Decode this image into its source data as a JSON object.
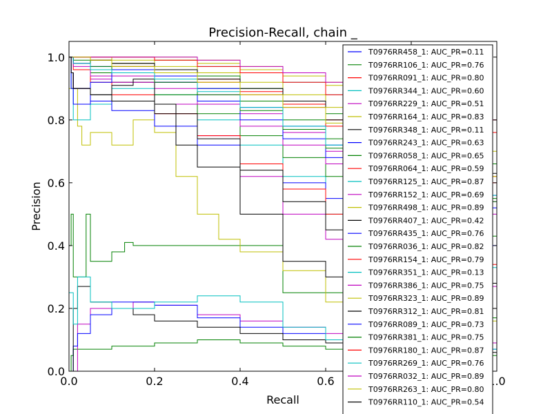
{
  "chart_data": {
    "type": "line",
    "title": "Precision-Recall, chain _",
    "xlabel": "Recall",
    "ylabel": "Precision",
    "xlim": [
      0.0,
      1.0
    ],
    "ylim": [
      0.0,
      1.05
    ],
    "xticks": [
      0.0,
      0.2,
      0.4,
      0.6,
      0.8,
      1.0
    ],
    "xtick_labels": [
      "0.0",
      "0.2",
      "0.4",
      "0.6",
      "0.8",
      "1.0"
    ],
    "yticks": [
      0.0,
      0.2,
      0.4,
      0.6,
      0.8,
      1.0
    ],
    "ytick_labels": [
      "0.0",
      "0.2",
      "0.4",
      "0.6",
      "0.8",
      "1.0"
    ],
    "legend_position": "top-right",
    "colors": [
      "#0000ff",
      "#008000",
      "#ff0000",
      "#00bfbf",
      "#bf00bf",
      "#bfbf00",
      "#000000"
    ],
    "series": [
      {
        "name": "T0976RR458_1: AUC_PR=0.11",
        "x": [
          0.0,
          0.01,
          0.02,
          0.05,
          0.1,
          0.2,
          0.3,
          0.4,
          0.5,
          0.6,
          0.7,
          0.8,
          0.9,
          1.0
        ],
        "y": [
          0.0,
          0.08,
          0.12,
          0.18,
          0.22,
          0.21,
          0.17,
          0.14,
          0.12,
          0.1,
          0.09,
          0.08,
          0.07,
          0.06
        ]
      },
      {
        "name": "T0976RR106_1: AUC_PR=0.76",
        "x": [
          0.0,
          0.005,
          0.01,
          0.05,
          0.1,
          0.2,
          0.3,
          0.4,
          0.5,
          0.6,
          0.7,
          0.8,
          0.9,
          1.0
        ],
        "y": [
          1.0,
          1.0,
          1.0,
          0.99,
          0.97,
          0.95,
          0.9,
          0.86,
          0.8,
          0.74,
          0.68,
          0.6,
          0.55,
          0.5
        ]
      },
      {
        "name": "T0976RR091_1: AUC_PR=0.80",
        "x": [
          0.0,
          0.005,
          0.01,
          0.05,
          0.1,
          0.2,
          0.3,
          0.4,
          0.5,
          0.6,
          0.7,
          0.8,
          0.9,
          1.0
        ],
        "y": [
          1.0,
          1.0,
          1.0,
          1.0,
          0.98,
          0.96,
          0.93,
          0.89,
          0.85,
          0.8,
          0.75,
          0.68,
          0.62,
          0.58
        ]
      },
      {
        "name": "T0976RR344_1: AUC_PR=0.60",
        "x": [
          0.0,
          0.005,
          0.01,
          0.05,
          0.1,
          0.2,
          0.3,
          0.4,
          0.5,
          0.6,
          0.7,
          0.8,
          0.9,
          1.0
        ],
        "y": [
          1.0,
          0.9,
          0.8,
          0.85,
          0.9,
          0.88,
          0.8,
          0.72,
          0.62,
          0.5,
          0.45,
          0.38,
          0.33,
          0.3
        ]
      },
      {
        "name": "T0976RR229_1: AUC_PR=0.51",
        "x": [
          0.0,
          0.005,
          0.01,
          0.05,
          0.1,
          0.2,
          0.3,
          0.4,
          0.5,
          0.6,
          0.7,
          0.8,
          0.9,
          1.0
        ],
        "y": [
          1.0,
          0.95,
          0.9,
          0.93,
          0.92,
          0.85,
          0.75,
          0.62,
          0.5,
          0.42,
          0.36,
          0.3,
          0.27,
          0.25
        ]
      },
      {
        "name": "T0976RR164_1: AUC_PR=0.83",
        "x": [
          0.0,
          0.005,
          0.01,
          0.05,
          0.1,
          0.2,
          0.3,
          0.4,
          0.5,
          0.6,
          0.7,
          0.8,
          0.9,
          1.0
        ],
        "y": [
          1.0,
          1.0,
          1.0,
          1.0,
          0.99,
          0.97,
          0.95,
          0.92,
          0.88,
          0.84,
          0.8,
          0.74,
          0.7,
          0.65
        ]
      },
      {
        "name": "T0976RR348_1: AUC_PR=0.11",
        "x": [
          0.0,
          0.01,
          0.02,
          0.05,
          0.1,
          0.15,
          0.2,
          0.3,
          0.4,
          0.5,
          0.6,
          0.7,
          0.8,
          0.9,
          1.0
        ],
        "y": [
          0.0,
          0.2,
          0.27,
          0.22,
          0.2,
          0.18,
          0.16,
          0.14,
          0.12,
          0.1,
          0.09,
          0.08,
          0.07,
          0.06,
          0.06
        ]
      },
      {
        "name": "T0976RR243_1: AUC_PR=0.63",
        "x": [
          0.0,
          0.005,
          0.01,
          0.05,
          0.1,
          0.2,
          0.3,
          0.4,
          0.5,
          0.6,
          0.7,
          0.8,
          0.9,
          1.0
        ],
        "y": [
          1.0,
          0.95,
          0.9,
          0.86,
          0.83,
          0.78,
          0.72,
          0.66,
          0.6,
          0.55,
          0.5,
          0.44,
          0.4,
          0.36
        ]
      },
      {
        "name": "T0976RR058_1: AUC_PR=0.65",
        "x": [
          0.0,
          0.005,
          0.01,
          0.05,
          0.1,
          0.2,
          0.3,
          0.4,
          0.5,
          0.6,
          0.7,
          0.8,
          0.9,
          1.0
        ],
        "y": [
          1.0,
          1.0,
          0.98,
          0.95,
          0.92,
          0.88,
          0.82,
          0.75,
          0.68,
          0.62,
          0.55,
          0.48,
          0.43,
          0.4
        ]
      },
      {
        "name": "T0976RR064_1: AUC_PR=0.59",
        "x": [
          0.0,
          0.005,
          0.01,
          0.05,
          0.1,
          0.2,
          0.3,
          0.4,
          0.5,
          0.6,
          0.7,
          0.8,
          0.9,
          1.0
        ],
        "y": [
          1.0,
          1.0,
          0.96,
          0.92,
          0.88,
          0.82,
          0.75,
          0.66,
          0.58,
          0.5,
          0.44,
          0.38,
          0.34,
          0.3
        ]
      },
      {
        "name": "T0976RR125_1: AUC_PR=0.87",
        "x": [
          0.0,
          0.005,
          0.01,
          0.05,
          0.1,
          0.2,
          0.3,
          0.4,
          0.5,
          0.6,
          0.7,
          0.8,
          0.9,
          1.0
        ],
        "y": [
          1.0,
          1.0,
          1.0,
          1.0,
          1.0,
          0.99,
          0.97,
          0.95,
          0.92,
          0.88,
          0.84,
          0.8,
          0.76,
          0.72
        ]
      },
      {
        "name": "T0976RR152_1: AUC_PR=0.69",
        "x": [
          0.0,
          0.005,
          0.01,
          0.05,
          0.1,
          0.2,
          0.3,
          0.4,
          0.5,
          0.6,
          0.7,
          0.8,
          0.9,
          1.0
        ],
        "y": [
          1.0,
          1.0,
          0.97,
          0.94,
          0.92,
          0.9,
          0.85,
          0.78,
          0.72,
          0.66,
          0.6,
          0.54,
          0.5,
          0.46
        ]
      },
      {
        "name": "T0976RR498_1: AUC_PR=0.89",
        "x": [
          0.0,
          0.005,
          0.01,
          0.05,
          0.1,
          0.2,
          0.3,
          0.4,
          0.5,
          0.6,
          0.7,
          0.8,
          0.9,
          1.0
        ],
        "y": [
          1.0,
          1.0,
          1.0,
          1.0,
          1.0,
          1.0,
          0.99,
          0.97,
          0.95,
          0.92,
          0.88,
          0.84,
          0.8,
          0.76
        ]
      },
      {
        "name": "T0976RR407_1: AUC_PR=0.42",
        "x": [
          0.0,
          0.005,
          0.01,
          0.05,
          0.1,
          0.15,
          0.2,
          0.25,
          0.3,
          0.4,
          0.5,
          0.6,
          0.7,
          0.8,
          0.9,
          1.0
        ],
        "y": [
          1.0,
          0.95,
          0.9,
          0.88,
          0.91,
          0.93,
          0.85,
          0.72,
          0.65,
          0.5,
          0.35,
          0.3,
          0.26,
          0.22,
          0.2,
          0.18
        ]
      },
      {
        "name": "T0976RR435_1: AUC_PR=0.76",
        "x": [
          0.0,
          0.005,
          0.01,
          0.05,
          0.1,
          0.2,
          0.3,
          0.4,
          0.5,
          0.6,
          0.7,
          0.8,
          0.9,
          1.0
        ],
        "y": [
          1.0,
          1.0,
          0.98,
          0.97,
          0.96,
          0.94,
          0.9,
          0.84,
          0.78,
          0.72,
          0.66,
          0.6,
          0.56,
          0.52
        ]
      },
      {
        "name": "T0976RR036_1: AUC_PR=0.82",
        "x": [
          0.0,
          0.005,
          0.01,
          0.05,
          0.1,
          0.2,
          0.3,
          0.4,
          0.5,
          0.6,
          0.7,
          0.8,
          0.9,
          1.0
        ],
        "y": [
          1.0,
          1.0,
          1.0,
          0.99,
          0.98,
          0.96,
          0.94,
          0.9,
          0.86,
          0.82,
          0.76,
          0.7,
          0.66,
          0.62
        ]
      },
      {
        "name": "T0976RR154_1: AUC_PR=0.79",
        "x": [
          0.0,
          0.005,
          0.01,
          0.05,
          0.1,
          0.2,
          0.3,
          0.4,
          0.5,
          0.6,
          0.7,
          0.8,
          0.9,
          1.0
        ],
        "y": [
          1.0,
          1.0,
          1.0,
          0.99,
          0.97,
          0.95,
          0.92,
          0.88,
          0.84,
          0.78,
          0.72,
          0.66,
          0.6,
          0.56
        ]
      },
      {
        "name": "T0976RR351_1: AUC_PR=0.13",
        "x": [
          0.0,
          0.01,
          0.02,
          0.05,
          0.1,
          0.2,
          0.3,
          0.4,
          0.5,
          0.6,
          0.7,
          0.8,
          0.9,
          1.0
        ],
        "y": [
          0.25,
          0.15,
          0.3,
          0.22,
          0.2,
          0.22,
          0.24,
          0.22,
          0.14,
          0.1,
          0.09,
          0.08,
          0.07,
          0.06
        ]
      },
      {
        "name": "T0976RR386_1: AUC_PR=0.75",
        "x": [
          0.0,
          0.005,
          0.01,
          0.05,
          0.1,
          0.2,
          0.3,
          0.4,
          0.5,
          0.6,
          0.7,
          0.8,
          0.9,
          1.0
        ],
        "y": [
          1.0,
          1.0,
          0.98,
          0.96,
          0.94,
          0.92,
          0.88,
          0.82,
          0.76,
          0.7,
          0.64,
          0.58,
          0.54,
          0.5
        ]
      },
      {
        "name": "T0976RR323_1: AUC_PR=0.89",
        "x": [
          0.0,
          0.005,
          0.01,
          0.05,
          0.1,
          0.2,
          0.3,
          0.4,
          0.5,
          0.6,
          0.7,
          0.8,
          0.9,
          1.0
        ],
        "y": [
          1.0,
          1.0,
          1.0,
          1.0,
          1.0,
          0.99,
          0.98,
          0.96,
          0.94,
          0.91,
          0.88,
          0.84,
          0.8,
          0.76
        ]
      },
      {
        "name": "T0976RR312_1: AUC_PR=0.81",
        "x": [
          0.0,
          0.005,
          0.01,
          0.05,
          0.1,
          0.2,
          0.3,
          0.4,
          0.5,
          0.6,
          0.7,
          0.8,
          0.9,
          1.0
        ],
        "y": [
          1.0,
          1.0,
          1.0,
          0.99,
          0.98,
          0.96,
          0.93,
          0.9,
          0.86,
          0.8,
          0.74,
          0.68,
          0.63,
          0.6
        ]
      },
      {
        "name": "T0976RR089_1: AUC_PR=0.73",
        "x": [
          0.0,
          0.005,
          0.01,
          0.05,
          0.1,
          0.2,
          0.3,
          0.4,
          0.5,
          0.6,
          0.7,
          0.8,
          0.9,
          1.0
        ],
        "y": [
          1.0,
          0.9,
          0.85,
          0.92,
          0.95,
          0.92,
          0.86,
          0.8,
          0.74,
          0.68,
          0.62,
          0.56,
          0.52,
          0.48
        ]
      },
      {
        "name": "T0976RR381_1: AUC_PR=0.75",
        "x": [
          0.0,
          0.005,
          0.01,
          0.05,
          0.1,
          0.2,
          0.3,
          0.4,
          0.5,
          0.6,
          0.7,
          0.8,
          0.9,
          1.0
        ],
        "y": [
          1.0,
          1.0,
          0.99,
          0.97,
          0.95,
          0.92,
          0.88,
          0.83,
          0.77,
          0.71,
          0.65,
          0.58,
          0.54,
          0.5
        ]
      },
      {
        "name": "T0976RR180_1: AUC_PR=0.87",
        "x": [
          0.0,
          0.005,
          0.01,
          0.05,
          0.1,
          0.2,
          0.3,
          0.4,
          0.5,
          0.6,
          0.7,
          0.8,
          0.9,
          1.0
        ],
        "y": [
          1.0,
          1.0,
          1.0,
          1.0,
          1.0,
          0.99,
          0.97,
          0.95,
          0.92,
          0.88,
          0.84,
          0.8,
          0.76,
          0.72
        ]
      },
      {
        "name": "T0976RR269_1: AUC_PR=0.76",
        "x": [
          0.0,
          0.005,
          0.01,
          0.05,
          0.1,
          0.2,
          0.3,
          0.4,
          0.5,
          0.6,
          0.7,
          0.8,
          0.9,
          1.0
        ],
        "y": [
          1.0,
          1.0,
          0.98,
          0.96,
          0.95,
          0.93,
          0.89,
          0.84,
          0.78,
          0.72,
          0.66,
          0.6,
          0.56,
          0.52
        ]
      },
      {
        "name": "T0976RR032_1: AUC_PR=0.89",
        "x": [
          0.0,
          0.005,
          0.01,
          0.05,
          0.1,
          0.2,
          0.3,
          0.4,
          0.5,
          0.6,
          0.7,
          0.8,
          0.9,
          1.0
        ],
        "y": [
          1.0,
          1.0,
          1.0,
          1.0,
          1.0,
          1.0,
          0.99,
          0.97,
          0.95,
          0.92,
          0.88,
          0.84,
          0.8,
          0.76
        ]
      },
      {
        "name": "T0976RR263_1: AUC_PR=0.80",
        "x": [
          0.0,
          0.005,
          0.01,
          0.05,
          0.1,
          0.2,
          0.3,
          0.4,
          0.5,
          0.6,
          0.7,
          0.8,
          0.9,
          1.0
        ],
        "y": [
          1.0,
          1.0,
          1.0,
          0.99,
          0.97,
          0.95,
          0.92,
          0.88,
          0.84,
          0.79,
          0.73,
          0.67,
          0.62,
          0.58
        ]
      },
      {
        "name": "T0976RR110_1: AUC_PR=0.54",
        "x": [
          0.0,
          0.005,
          0.01,
          0.05,
          0.1,
          0.2,
          0.3,
          0.4,
          0.5,
          0.6,
          0.7,
          0.8,
          0.9,
          1.0
        ],
        "y": [
          1.0,
          0.95,
          0.9,
          0.88,
          0.86,
          0.82,
          0.74,
          0.64,
          0.54,
          0.45,
          0.38,
          0.32,
          0.28,
          0.25
        ]
      }
    ],
    "extra_unlabeled_series": [
      {
        "color": "#008000",
        "x": [
          0.0,
          0.005,
          0.01,
          0.05,
          0.1,
          0.2,
          0.3,
          0.4,
          0.5,
          0.6,
          0.7,
          0.8,
          0.9,
          1.0
        ],
        "y": [
          0.0,
          0.05,
          0.07,
          0.07,
          0.08,
          0.09,
          0.1,
          0.09,
          0.08,
          0.07,
          0.06,
          0.06,
          0.05,
          0.05
        ]
      },
      {
        "color": "#008000",
        "x": [
          0.0,
          0.005,
          0.01,
          0.04,
          0.05,
          0.1,
          0.13,
          0.15,
          0.5,
          0.8,
          1.0
        ],
        "y": [
          0.4,
          0.5,
          0.3,
          0.5,
          0.35,
          0.38,
          0.41,
          0.4,
          0.25,
          0.17,
          0.14
        ]
      },
      {
        "color": "#bfbf00",
        "x": [
          0.0,
          0.02,
          0.03,
          0.05,
          0.1,
          0.15,
          0.2,
          0.25,
          0.3,
          0.35,
          0.4,
          0.5,
          0.6,
          0.7,
          0.8,
          0.9,
          1.0
        ],
        "y": [
          0.9,
          0.78,
          0.72,
          0.76,
          0.72,
          0.8,
          0.76,
          0.62,
          0.5,
          0.42,
          0.38,
          0.32,
          0.22,
          0.2,
          0.18,
          0.16,
          0.15
        ]
      },
      {
        "color": "#bf00bf",
        "x": [
          0.0,
          0.02,
          0.05,
          0.1,
          0.15,
          0.2,
          0.3,
          0.4,
          0.5,
          0.6,
          0.7,
          0.8,
          0.9,
          1.0
        ],
        "y": [
          0.0,
          0.15,
          0.2,
          0.2,
          0.22,
          0.21,
          0.18,
          0.16,
          0.14,
          0.12,
          0.11,
          0.1,
          0.09,
          0.09
        ]
      }
    ]
  }
}
